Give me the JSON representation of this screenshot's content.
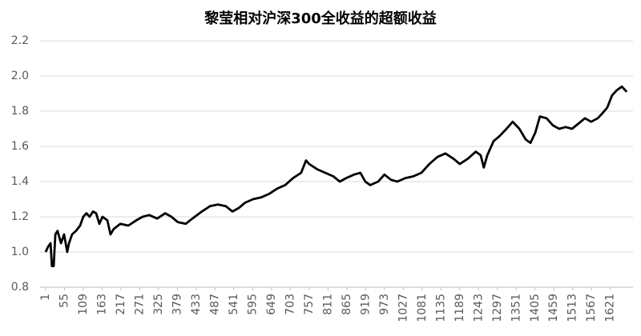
{
  "chart_data": {
    "type": "line",
    "title": "黎莹相对沪深300全收益的超额收益",
    "x": [
      1,
      8,
      15,
      19,
      24,
      29,
      35,
      45,
      54,
      63,
      68,
      77,
      88,
      100,
      109,
      118,
      127,
      137,
      146,
      155,
      164,
      178,
      187,
      196,
      215,
      238,
      261,
      279,
      298,
      321,
      344,
      362,
      380,
      403,
      422,
      449,
      472,
      495,
      518,
      537,
      555,
      573,
      596,
      619,
      642,
      665,
      688,
      711,
      734,
      748,
      757,
      780,
      803,
      826,
      845,
      863,
      886,
      904,
      918,
      932,
      955,
      973,
      992,
      1010,
      1033,
      1056,
      1079,
      1102,
      1125,
      1148,
      1171,
      1189,
      1212,
      1235,
      1249,
      1258,
      1268,
      1286,
      1304,
      1323,
      1341,
      1360,
      1378,
      1392,
      1406,
      1419,
      1438,
      1456,
      1474,
      1493,
      1511,
      1530,
      1548,
      1566,
      1585,
      1599,
      1612,
      1626,
      1640,
      1654,
      1668
    ],
    "values": [
      1.0,
      1.03,
      1.05,
      0.92,
      0.92,
      1.1,
      1.12,
      1.05,
      1.1,
      1.0,
      1.05,
      1.1,
      1.12,
      1.15,
      1.2,
      1.22,
      1.2,
      1.23,
      1.22,
      1.16,
      1.2,
      1.18,
      1.1,
      1.13,
      1.16,
      1.15,
      1.18,
      1.2,
      1.21,
      1.19,
      1.22,
      1.2,
      1.17,
      1.16,
      1.19,
      1.23,
      1.26,
      1.27,
      1.26,
      1.23,
      1.25,
      1.28,
      1.3,
      1.31,
      1.33,
      1.36,
      1.38,
      1.42,
      1.45,
      1.52,
      1.5,
      1.47,
      1.45,
      1.43,
      1.4,
      1.42,
      1.44,
      1.45,
      1.4,
      1.38,
      1.4,
      1.44,
      1.41,
      1.4,
      1.42,
      1.43,
      1.45,
      1.5,
      1.54,
      1.56,
      1.53,
      1.5,
      1.53,
      1.57,
      1.55,
      1.48,
      1.55,
      1.63,
      1.66,
      1.7,
      1.74,
      1.7,
      1.64,
      1.62,
      1.68,
      1.77,
      1.76,
      1.72,
      1.7,
      1.71,
      1.7,
      1.73,
      1.76,
      1.74,
      1.76,
      1.79,
      1.82,
      1.89,
      1.92,
      1.94,
      1.91
    ],
    "color": "#000000",
    "xlim": [
      -15,
      1686
    ],
    "xticks": [
      1,
      55,
      109,
      163,
      217,
      271,
      325,
      379,
      433,
      487,
      541,
      595,
      649,
      703,
      757,
      811,
      865,
      919,
      973,
      1027,
      1081,
      1135,
      1189,
      1243,
      1297,
      1351,
      1405,
      1459,
      1513,
      1567,
      1621
    ],
    "ylim": [
      0.8,
      2.2
    ],
    "yticks": [
      {
        "value": 0.8,
        "label": "0.8"
      },
      {
        "value": 1.0,
        "label": "1.0"
      },
      {
        "value": 1.2,
        "label": "1.2"
      },
      {
        "value": 1.4,
        "label": "1.4"
      },
      {
        "value": 1.6,
        "label": "1.6"
      },
      {
        "value": 1.8,
        "label": "1.8"
      },
      {
        "value": 2.0,
        "label": "2.0"
      },
      {
        "value": 2.2,
        "label": "2.2"
      }
    ],
    "grid": true
  }
}
